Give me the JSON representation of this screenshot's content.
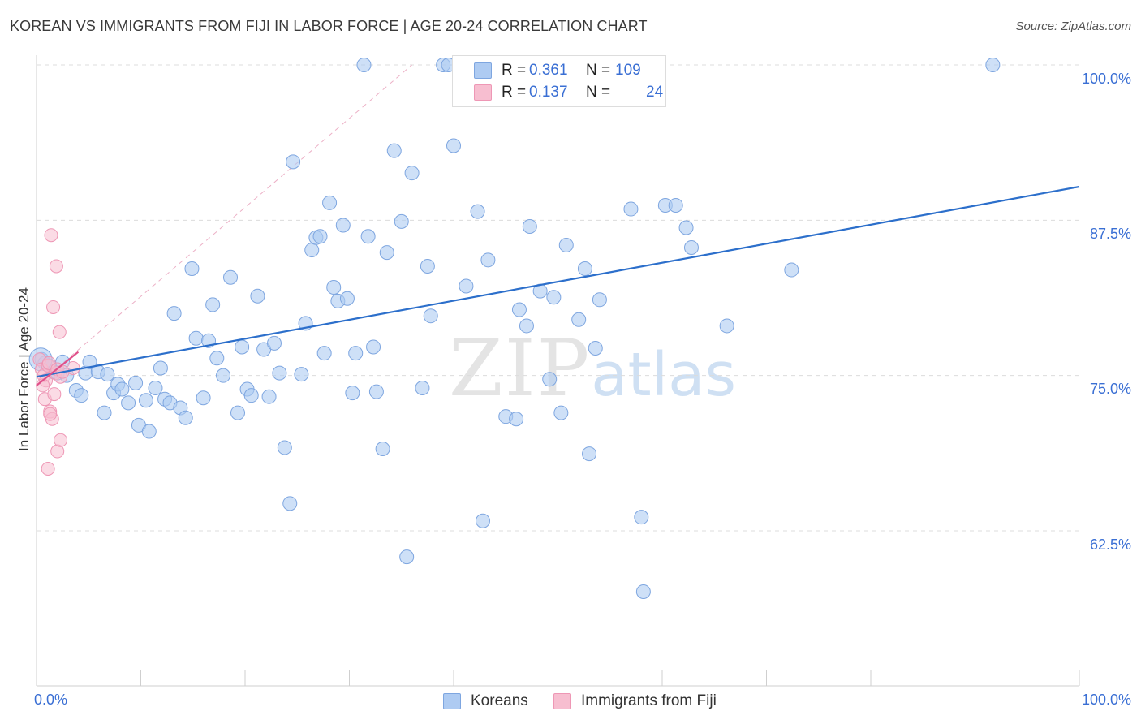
{
  "header": {
    "title": "KOREAN VS IMMIGRANTS FROM FIJI IN LABOR FORCE | AGE 20-24 CORRELATION CHART",
    "source": "Source: ZipAtlas.com"
  },
  "watermark": {
    "zip": "ZIP",
    "atlas": "atlas"
  },
  "legend": {
    "series": [
      {
        "r_label": "R =",
        "r_value": "0.361",
        "n_label": "N =",
        "n_value": "109",
        "color": "#aecbf2"
      },
      {
        "r_label": "R =",
        "r_value": "0.137",
        "n_label": "N =",
        "n_value": "24",
        "color": "#f7bed0"
      }
    ]
  },
  "bottom_legend": {
    "koreans": "Koreans",
    "fiji": "Immigrants from Fiji"
  },
  "axis_labels": {
    "y": "In Labor Force | Age 20-24",
    "x_left": "0.0%",
    "x_right": "100.0%",
    "y_ticks": [
      "100.0%",
      "87.5%",
      "75.0%",
      "62.5%"
    ]
  },
  "colors": {
    "korean_fill": "#aecbf2",
    "korean_stroke": "#7ea6e0",
    "korean_line": "#2c6fcb",
    "fiji_fill": "#f7bed0",
    "fiji_stroke": "#ee97b5",
    "fiji_line": "#e0508a",
    "grid": "#dcdcdc",
    "tick_label": "#3a6fd4"
  },
  "chart_data": {
    "type": "scatter",
    "title": "KOREAN VS IMMIGRANTS FROM FIJI IN LABOR FORCE | AGE 20-24 CORRELATION CHART",
    "xlabel": "",
    "ylabel": "In Labor Force | Age 20-24",
    "xlim": [
      0,
      100
    ],
    "ylim": [
      52,
      101
    ],
    "y_ticks": [
      62.5,
      75.0,
      87.5,
      100.0
    ],
    "x_ticks": [
      0,
      10,
      20,
      30,
      40,
      50,
      60,
      70,
      80,
      90,
      100
    ],
    "grid": true,
    "series": [
      {
        "name": "Koreans",
        "r": 0.361,
        "n": 109,
        "trend": {
          "x": [
            0,
            100
          ],
          "y": [
            74.9,
            90.2
          ],
          "style": "solid"
        },
        "points": [
          [
            0.5,
            76.3
          ],
          [
            0.8,
            76.0
          ],
          [
            1.2,
            75.8
          ],
          [
            1.6,
            75.3
          ],
          [
            2.0,
            75.2
          ],
          [
            2.5,
            76.1
          ],
          [
            2.9,
            75.0
          ],
          [
            3.8,
            73.8
          ],
          [
            4.3,
            73.4
          ],
          [
            4.7,
            75.2
          ],
          [
            5.1,
            76.1
          ],
          [
            5.9,
            75.3
          ],
          [
            6.5,
            72.0
          ],
          [
            6.8,
            75.1
          ],
          [
            7.4,
            73.6
          ],
          [
            7.8,
            74.3
          ],
          [
            8.2,
            73.9
          ],
          [
            8.8,
            72.8
          ],
          [
            9.5,
            74.4
          ],
          [
            9.8,
            71.0
          ],
          [
            10.5,
            73.0
          ],
          [
            10.8,
            70.5
          ],
          [
            11.4,
            74.0
          ],
          [
            11.9,
            75.6
          ],
          [
            12.3,
            73.1
          ],
          [
            12.8,
            72.8
          ],
          [
            13.2,
            80.0
          ],
          [
            13.8,
            72.4
          ],
          [
            14.3,
            71.6
          ],
          [
            14.9,
            83.6
          ],
          [
            15.3,
            78.0
          ],
          [
            16.0,
            73.2
          ],
          [
            16.5,
            77.8
          ],
          [
            16.9,
            80.7
          ],
          [
            17.3,
            76.4
          ],
          [
            17.9,
            75.0
          ],
          [
            18.6,
            82.9
          ],
          [
            19.3,
            72.0
          ],
          [
            19.7,
            77.3
          ],
          [
            20.2,
            73.9
          ],
          [
            20.6,
            73.4
          ],
          [
            21.2,
            81.4
          ],
          [
            21.8,
            77.1
          ],
          [
            22.3,
            73.3
          ],
          [
            22.8,
            77.6
          ],
          [
            23.3,
            75.2
          ],
          [
            23.8,
            69.2
          ],
          [
            24.3,
            64.7
          ],
          [
            24.6,
            92.2
          ],
          [
            25.4,
            75.1
          ],
          [
            25.8,
            79.2
          ],
          [
            26.4,
            85.1
          ],
          [
            26.8,
            86.1
          ],
          [
            27.2,
            86.2
          ],
          [
            27.6,
            76.8
          ],
          [
            28.1,
            88.9
          ],
          [
            28.5,
            82.1
          ],
          [
            28.9,
            81.0
          ],
          [
            29.4,
            87.1
          ],
          [
            29.8,
            81.2
          ],
          [
            30.3,
            73.6
          ],
          [
            30.6,
            76.8
          ],
          [
            31.4,
            100.0
          ],
          [
            31.8,
            86.2
          ],
          [
            32.3,
            77.3
          ],
          [
            32.6,
            73.7
          ],
          [
            33.2,
            69.1
          ],
          [
            33.6,
            84.9
          ],
          [
            34.3,
            93.1
          ],
          [
            35.0,
            87.4
          ],
          [
            35.5,
            60.4
          ],
          [
            36.0,
            91.3
          ],
          [
            37.0,
            74.0
          ],
          [
            37.5,
            83.8
          ],
          [
            37.8,
            79.8
          ],
          [
            39.0,
            100.0
          ],
          [
            39.5,
            100.0
          ],
          [
            40.0,
            93.5
          ],
          [
            41.2,
            82.2
          ],
          [
            42.3,
            88.2
          ],
          [
            42.8,
            63.3
          ],
          [
            43.3,
            84.3
          ],
          [
            45.0,
            71.7
          ],
          [
            46.0,
            71.5
          ],
          [
            46.3,
            80.3
          ],
          [
            47.0,
            79.0
          ],
          [
            47.3,
            87.0
          ],
          [
            48.3,
            81.8
          ],
          [
            49.2,
            74.7
          ],
          [
            49.6,
            81.3
          ],
          [
            50.3,
            72.0
          ],
          [
            50.8,
            85.5
          ],
          [
            52.0,
            79.5
          ],
          [
            52.6,
            83.6
          ],
          [
            53.0,
            68.7
          ],
          [
            53.6,
            77.2
          ],
          [
            54.0,
            81.1
          ],
          [
            57.0,
            88.4
          ],
          [
            58.0,
            63.6
          ],
          [
            58.2,
            57.6
          ],
          [
            60.3,
            88.7
          ],
          [
            61.3,
            88.7
          ],
          [
            62.3,
            86.9
          ],
          [
            62.8,
            85.3
          ],
          [
            66.2,
            79.0
          ],
          [
            72.4,
            83.5
          ],
          [
            91.7,
            100.0
          ]
        ]
      },
      {
        "name": "Immigrants from Fiji",
        "r": 0.137,
        "n": 24,
        "trend": {
          "x": [
            0,
            4
          ],
          "y": [
            74.2,
            76.9
          ],
          "style": "solid",
          "extension": {
            "x": [
              0,
              36
            ],
            "y": [
              74.2,
              100.0
            ],
            "style": "dashed"
          }
        },
        "points": [
          [
            0.3,
            76.3
          ],
          [
            0.5,
            75.5
          ],
          [
            0.7,
            75.0
          ],
          [
            0.9,
            74.6
          ],
          [
            1.1,
            75.8
          ],
          [
            0.6,
            74.2
          ],
          [
            0.8,
            73.1
          ],
          [
            1.3,
            72.1
          ],
          [
            1.5,
            71.5
          ],
          [
            1.8,
            75.2
          ],
          [
            1.2,
            76.0
          ],
          [
            2.0,
            75.5
          ],
          [
            2.3,
            74.9
          ],
          [
            1.4,
            86.3
          ],
          [
            1.9,
            83.8
          ],
          [
            1.6,
            80.5
          ],
          [
            2.2,
            78.5
          ],
          [
            1.7,
            73.5
          ],
          [
            2.0,
            68.9
          ],
          [
            2.3,
            69.8
          ],
          [
            1.1,
            67.5
          ],
          [
            1.3,
            71.9
          ],
          [
            3.5,
            75.6
          ],
          [
            2.5,
            75.3
          ]
        ]
      }
    ]
  }
}
